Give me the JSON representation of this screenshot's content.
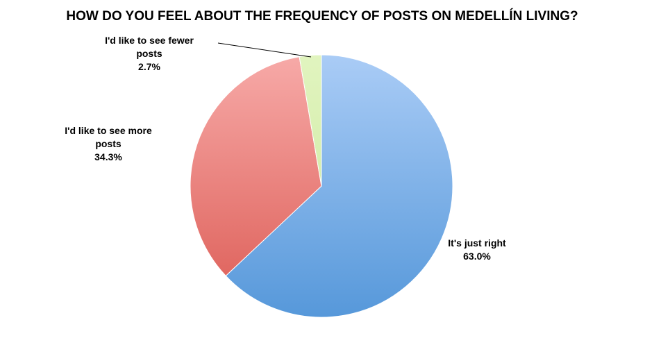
{
  "chart_data": {
    "type": "pie",
    "title": "HOW DO YOU FEEL ABOUT THE FREQUENCY OF POSTS ON MEDELLÍN LIVING?",
    "slices": [
      {
        "label_lines": [
          "It's just right"
        ],
        "value": 63.0,
        "value_text": "63.0%",
        "color_light": "#aaccf6",
        "color_dark": "#5698da"
      },
      {
        "label_lines": [
          "I'd like to see more",
          "posts"
        ],
        "value": 34.3,
        "value_text": "34.3%",
        "color_light": "#f7aaa8",
        "color_dark": "#dc5b54"
      },
      {
        "label_lines": [
          "I'd like to see fewer",
          "posts"
        ],
        "value": 2.7,
        "value_text": "2.7%",
        "color_light": "#e1f4bf",
        "color_dark": "#c9e89b"
      }
    ],
    "start_angle": "12 o'clock",
    "direction": "clockwise",
    "legend": "none"
  }
}
